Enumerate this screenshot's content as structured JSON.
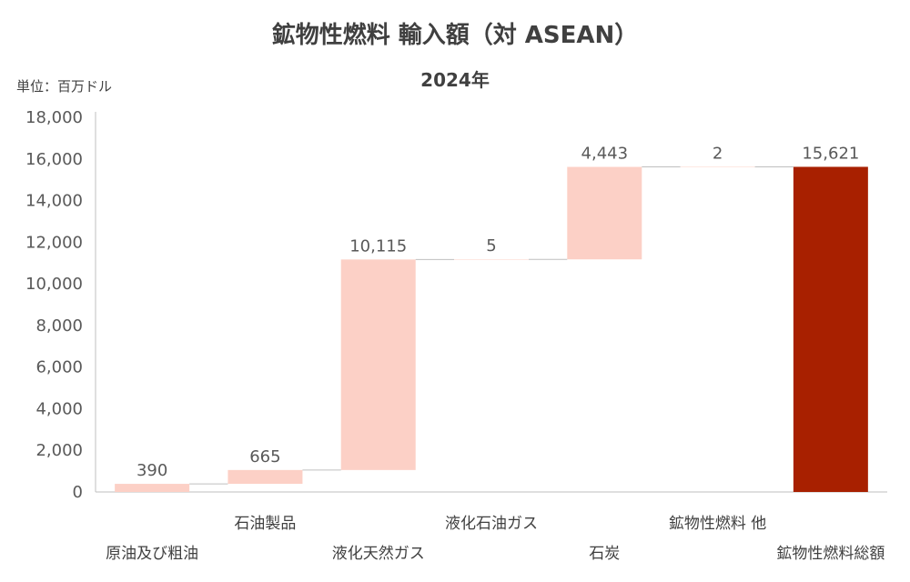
{
  "title": "鉱物性燃料 輸入額（対 ASEAN）",
  "subtitle": "2024年",
  "unit_label": "単位：百万ドル",
  "colors": {
    "increment": "#fcd0c6",
    "total": "#a82000",
    "axis": "#bfbfbf",
    "connector": "#bfbfbf"
  },
  "chart_data": {
    "type": "bar",
    "subtype": "waterfall",
    "categories": [
      "原油及び粗油",
      "石油製品",
      "液化天然ガス",
      "液化石油ガス",
      "石炭",
      "鉱物性燃料 他",
      "鉱物性燃料総額"
    ],
    "values": [
      390,
      665,
      10115,
      5,
      4443,
      2,
      15621
    ],
    "data_labels": [
      "390",
      "665",
      "10,115",
      "5",
      "4,443",
      "2",
      "15,621"
    ],
    "is_total": [
      false,
      false,
      false,
      false,
      false,
      false,
      true
    ],
    "ylim": [
      0,
      18000
    ],
    "yticks": [
      0,
      2000,
      4000,
      6000,
      8000,
      10000,
      12000,
      14000,
      16000,
      18000
    ],
    "ytick_labels": [
      "0",
      "2,000",
      "4,000",
      "6,000",
      "8,000",
      "10,000",
      "12,000",
      "14,000",
      "16,000",
      "18,000"
    ],
    "grid": false,
    "legend": "none"
  }
}
